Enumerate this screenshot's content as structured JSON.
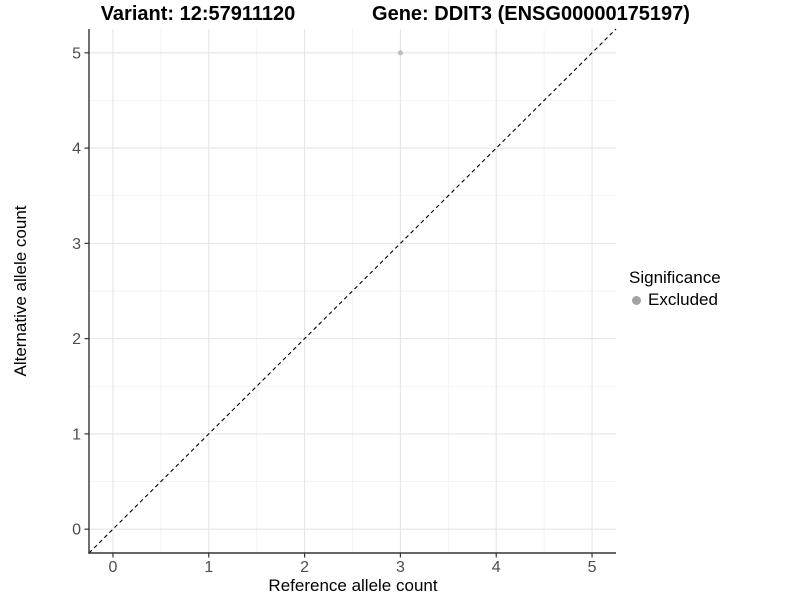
{
  "chart_data": {
    "type": "scatter",
    "titles": {
      "left": "Variant: 12:57911120",
      "right": "Gene: DDIT3 (ENSG00000175197)"
    },
    "xlabel": "Reference allele count",
    "ylabel": "Alternative allele count",
    "xlim": [
      -0.25,
      5.25
    ],
    "ylim": [
      -0.25,
      5.25
    ],
    "xticks": [
      0,
      1,
      2,
      3,
      4,
      5
    ],
    "yticks": [
      0,
      1,
      2,
      3,
      4,
      5
    ],
    "xminor": [
      0.5,
      1.5,
      2.5,
      3.5,
      4.5
    ],
    "yminor": [
      0.5,
      1.5,
      2.5,
      3.5,
      4.5
    ],
    "grid": "major+minor",
    "points": [
      {
        "x": 3,
        "y": 5,
        "significance": "Excluded"
      }
    ],
    "identity_line": {
      "equation": "y = x",
      "style": "dashed"
    },
    "legend": {
      "title": "Significance",
      "position": "right",
      "entries": [
        {
          "label": "Excluded",
          "color": "#a3a3a3"
        }
      ]
    },
    "colors": {
      "point": "#bfbfbf",
      "grid_major": "#e5e5e5",
      "grid_minor": "#f2f2f2",
      "axis": "#333333",
      "tick_label": "#4d4d4d",
      "identity_line": "#000000",
      "background": "#ffffff"
    }
  }
}
